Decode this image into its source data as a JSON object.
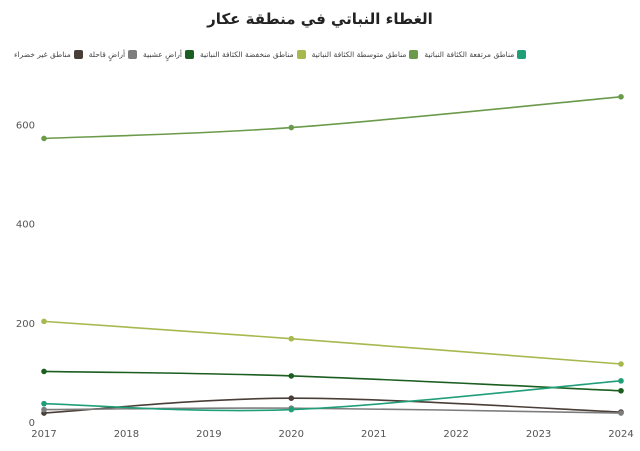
{
  "chart_data": {
    "type": "line",
    "title": "الغطاء النباتي في منطقة عكار",
    "xlabel": "",
    "ylabel": "",
    "x": [
      2017,
      2018,
      2019,
      2020,
      2021,
      2022,
      2023,
      2024
    ],
    "xticks": [
      "2017",
      "2018",
      "2019",
      "2020",
      "2021",
      "2022",
      "2023",
      "2024"
    ],
    "yticks": [
      0,
      200,
      400,
      600
    ],
    "ylim": [
      0,
      700
    ],
    "grid": false,
    "legend_position": "top",
    "series": [
      {
        "name": "مناطق غير خضراء",
        "color": "#4a3f38",
        "x": [
          2017,
          2020,
          2024
        ],
        "values": [
          18,
          48,
          20
        ]
      },
      {
        "name": "أراضٍ قاحلة",
        "color": "#7d7d7d",
        "x": [
          2017,
          2020,
          2024
        ],
        "values": [
          25,
          28,
          18
        ]
      },
      {
        "name": "أراضٍ عشبية",
        "color": "#1b5e20",
        "x": [
          2017,
          2020,
          2024
        ],
        "values": [
          102,
          93,
          63
        ]
      },
      {
        "name": "مناطق منخفضة الكثافة النباتية",
        "color": "#a8b84f",
        "x": [
          2017,
          2020,
          2024
        ],
        "values": [
          203,
          168,
          117
        ]
      },
      {
        "name": "مناطق متوسطة الكثافة النباتية",
        "color": "#6a9a4a",
        "x": [
          2017,
          2020,
          2024
        ],
        "values": [
          572,
          594,
          656
        ]
      },
      {
        "name": "مناطق مرتفعة الكثافة النباتية",
        "color": "#1f9e78",
        "x": [
          2017,
          2020,
          2024
        ],
        "values": [
          37,
          25,
          83
        ]
      }
    ]
  }
}
